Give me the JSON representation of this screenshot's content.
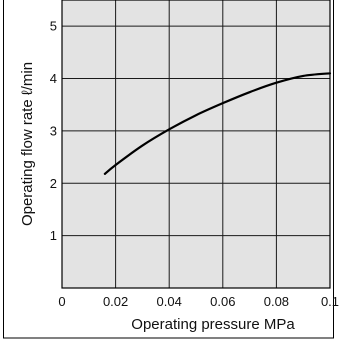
{
  "colors": {
    "background": "#ffffff",
    "plot_background": "#e3e3e3",
    "grid": "#1a1a1a",
    "series": "#000000",
    "frame": "#000000"
  },
  "chart_data": {
    "type": "line",
    "title": "",
    "xlabel": "Operating pressure MPa",
    "ylabel": "Operating flow rate ℓ/min",
    "xlim": [
      0,
      0.1
    ],
    "ylim": [
      0,
      5.5
    ],
    "xticks": [
      0,
      0.02,
      0.04,
      0.06,
      0.08,
      0.1
    ],
    "xtick_labels": [
      "0",
      "0.02",
      "0.04",
      "0.06",
      "0.08",
      "0.1"
    ],
    "yticks": [
      1,
      2,
      3,
      4,
      5
    ],
    "ytick_labels": [
      "1",
      "2",
      "3",
      "4",
      "5"
    ],
    "grid": true,
    "legend": "none",
    "series": [
      {
        "x": [
          0.016,
          0.02,
          0.03,
          0.04,
          0.05,
          0.06,
          0.07,
          0.08,
          0.09,
          0.1
        ],
        "y": [
          2.18,
          2.35,
          2.72,
          3.03,
          3.3,
          3.53,
          3.74,
          3.92,
          4.05,
          4.1
        ]
      }
    ]
  }
}
